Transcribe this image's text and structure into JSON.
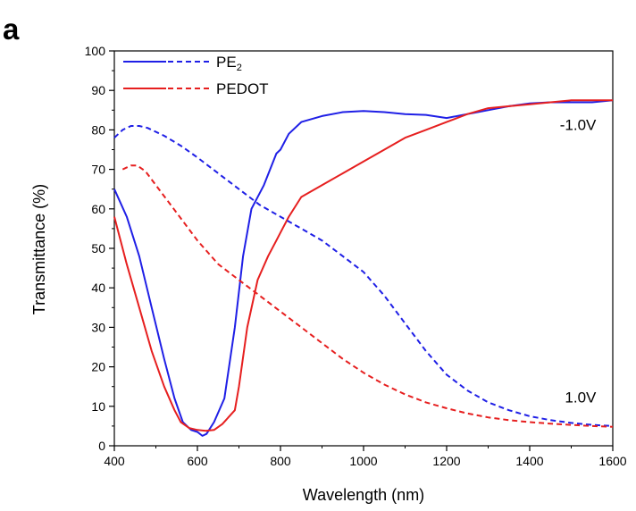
{
  "panel_label": "a",
  "chart_data": {
    "type": "line",
    "title": "",
    "xlabel": "Wavelength (nm)",
    "ylabel": "Transmittance (%)",
    "xlim": [
      400,
      1600
    ],
    "ylim": [
      0,
      100
    ],
    "x_ticks": [
      400,
      600,
      800,
      1000,
      1200,
      1400,
      1600
    ],
    "y_ticks": [
      0,
      10,
      20,
      30,
      40,
      50,
      60,
      70,
      80,
      90,
      100
    ],
    "grid": false,
    "legend": {
      "placement": "top-left",
      "entries": [
        {
          "name": "PE",
          "subscript": "2",
          "color": "#1f1fe6"
        },
        {
          "name": "PEDOT",
          "subscript": "",
          "color": "#e61f1f"
        }
      ]
    },
    "annotations": [
      {
        "text": "-1.0V",
        "x": 1560,
        "y": 80
      },
      {
        "text": "1.0V",
        "x": 1560,
        "y": 11
      }
    ],
    "series": [
      {
        "name": "PE2 -1.0V",
        "color": "#1f1fe6",
        "style": "solid",
        "points": [
          [
            400,
            65
          ],
          [
            430,
            58
          ],
          [
            460,
            48
          ],
          [
            490,
            35
          ],
          [
            520,
            22
          ],
          [
            545,
            12
          ],
          [
            565,
            6
          ],
          [
            585,
            4
          ],
          [
            600,
            3.5
          ],
          [
            612,
            2.5
          ],
          [
            622,
            3
          ],
          [
            640,
            6
          ],
          [
            665,
            12
          ],
          [
            690,
            30
          ],
          [
            710,
            48
          ],
          [
            730,
            60
          ],
          [
            760,
            66
          ],
          [
            790,
            74
          ],
          [
            800,
            75
          ],
          [
            820,
            79
          ],
          [
            850,
            82
          ],
          [
            900,
            83.5
          ],
          [
            950,
            84.5
          ],
          [
            1000,
            84.8
          ],
          [
            1050,
            84.5
          ],
          [
            1100,
            84
          ],
          [
            1150,
            83.8
          ],
          [
            1200,
            83
          ],
          [
            1250,
            84
          ],
          [
            1300,
            85
          ],
          [
            1350,
            86
          ],
          [
            1400,
            86.7
          ],
          [
            1450,
            87
          ],
          [
            1500,
            87
          ],
          [
            1550,
            87
          ],
          [
            1600,
            87.5
          ]
        ]
      },
      {
        "name": "PEDOT -1.0V",
        "color": "#e61f1f",
        "style": "solid",
        "points": [
          [
            400,
            58
          ],
          [
            430,
            46
          ],
          [
            460,
            35
          ],
          [
            490,
            24
          ],
          [
            520,
            15
          ],
          [
            545,
            9
          ],
          [
            560,
            6
          ],
          [
            580,
            4.5
          ],
          [
            600,
            4
          ],
          [
            620,
            3.8
          ],
          [
            640,
            4
          ],
          [
            660,
            5.5
          ],
          [
            690,
            9
          ],
          [
            700,
            15
          ],
          [
            720,
            30
          ],
          [
            745,
            42
          ],
          [
            770,
            48
          ],
          [
            790,
            52
          ],
          [
            800,
            54
          ],
          [
            820,
            58
          ],
          [
            850,
            63
          ],
          [
            900,
            66
          ],
          [
            950,
            69
          ],
          [
            1000,
            72
          ],
          [
            1050,
            75
          ],
          [
            1100,
            78
          ],
          [
            1150,
            80
          ],
          [
            1200,
            82
          ],
          [
            1250,
            84
          ],
          [
            1300,
            85.5
          ],
          [
            1350,
            86
          ],
          [
            1400,
            86.5
          ],
          [
            1450,
            87
          ],
          [
            1500,
            87.5
          ],
          [
            1550,
            87.5
          ],
          [
            1600,
            87.5
          ]
        ]
      },
      {
        "name": "PE2 1.0V",
        "color": "#1f1fe6",
        "style": "dashed",
        "points": [
          [
            400,
            78
          ],
          [
            420,
            80
          ],
          [
            440,
            81
          ],
          [
            460,
            81
          ],
          [
            480,
            80.5
          ],
          [
            520,
            78.5
          ],
          [
            560,
            76
          ],
          [
            600,
            73
          ],
          [
            650,
            69
          ],
          [
            700,
            65
          ],
          [
            750,
            61
          ],
          [
            800,
            58
          ],
          [
            850,
            55
          ],
          [
            900,
            52
          ],
          [
            950,
            48
          ],
          [
            1000,
            44
          ],
          [
            1050,
            38
          ],
          [
            1100,
            31
          ],
          [
            1150,
            24
          ],
          [
            1200,
            18
          ],
          [
            1250,
            14
          ],
          [
            1300,
            11
          ],
          [
            1350,
            9
          ],
          [
            1400,
            7.5
          ],
          [
            1450,
            6.5
          ],
          [
            1500,
            5.8
          ],
          [
            1550,
            5.3
          ],
          [
            1600,
            5
          ]
        ]
      },
      {
        "name": "PEDOT 1.0V",
        "color": "#e61f1f",
        "style": "dashed",
        "points": [
          [
            420,
            70
          ],
          [
            440,
            71
          ],
          [
            455,
            71
          ],
          [
            475,
            69.5
          ],
          [
            500,
            66
          ],
          [
            550,
            59
          ],
          [
            600,
            52
          ],
          [
            650,
            46
          ],
          [
            700,
            42
          ],
          [
            750,
            38
          ],
          [
            800,
            34
          ],
          [
            850,
            30
          ],
          [
            900,
            26
          ],
          [
            950,
            22
          ],
          [
            1000,
            18.5
          ],
          [
            1050,
            15.5
          ],
          [
            1100,
            13
          ],
          [
            1150,
            11
          ],
          [
            1200,
            9.5
          ],
          [
            1250,
            8.2
          ],
          [
            1300,
            7.2
          ],
          [
            1350,
            6.5
          ],
          [
            1400,
            6
          ],
          [
            1450,
            5.6
          ],
          [
            1500,
            5.3
          ],
          [
            1550,
            5
          ],
          [
            1600,
            4.8
          ]
        ]
      }
    ]
  }
}
